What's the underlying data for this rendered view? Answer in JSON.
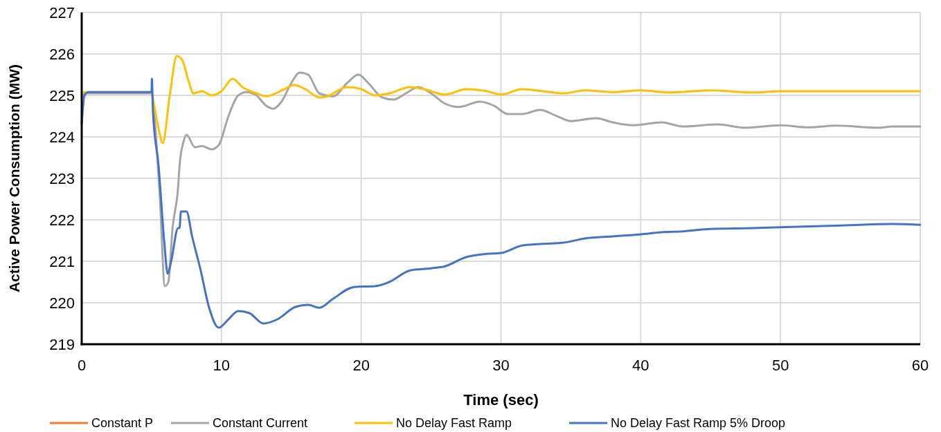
{
  "chart_data": {
    "type": "line",
    "xlabel": "Time (sec)",
    "ylabel": "Active Power Consumption (MW)",
    "xlim": [
      0,
      60
    ],
    "xticks": [
      0,
      10,
      20,
      30,
      40,
      50,
      60
    ],
    "ylim": [
      219,
      227
    ],
    "yticks": [
      219,
      220,
      221,
      222,
      223,
      224,
      225,
      226,
      227
    ],
    "grid": true,
    "legend": "bottom",
    "line_style": "solid",
    "marker": "none",
    "series": [
      {
        "name": "Constant P",
        "color": "#ed7d31"
      },
      {
        "name": "Constant Current",
        "color": "#a5a5a5",
        "x": [
          0,
          0.3,
          5,
          5.2,
          5.6,
          5.95,
          6.2,
          6.5,
          6.9,
          7.0,
          7.3,
          7.5,
          8.1,
          8.6,
          9.3,
          9.8,
          10.5,
          11.2,
          11.8,
          12.5,
          13.2,
          13.7,
          14.3,
          15,
          15.6,
          16.2,
          17,
          18,
          19,
          19.8,
          20.5,
          21.5,
          22.3,
          23.2,
          24.1,
          25,
          26,
          27,
          28.5,
          29.5,
          30.5,
          31.5,
          32.8,
          34,
          35,
          36.8,
          38,
          39.5,
          41.5,
          43,
          45.5,
          47.5,
          50,
          52,
          54,
          57,
          58,
          60
        ],
        "values": [
          224.95,
          225.05,
          225.05,
          224.5,
          222.5,
          220.4,
          220.5,
          221.8,
          222.8,
          223.3,
          223.9,
          224.05,
          223.75,
          223.78,
          223.7,
          223.8,
          224.5,
          225.0,
          225.08,
          225.0,
          224.75,
          224.68,
          224.85,
          225.3,
          225.55,
          225.5,
          225.05,
          224.98,
          225.3,
          225.5,
          225.3,
          224.95,
          224.9,
          225.05,
          225.2,
          225.05,
          224.8,
          224.72,
          224.85,
          224.75,
          224.55,
          224.55,
          224.65,
          224.5,
          224.38,
          224.45,
          224.35,
          224.28,
          224.35,
          224.25,
          224.3,
          224.22,
          224.28,
          224.23,
          224.27,
          224.22,
          224.25,
          224.25
        ]
      },
      {
        "name": "No Delay Fast Ramp",
        "color": "#ffc000",
        "x": [
          0,
          0.3,
          5,
          5.05,
          5.5,
          5.8,
          6.3,
          6.8,
          7.2,
          7.6,
          8,
          8.6,
          9.3,
          10,
          10.8,
          11.5,
          12.5,
          13.2,
          14.5,
          15.2,
          16,
          17,
          17.5,
          19,
          20,
          21,
          22,
          23.5,
          24.5,
          26,
          27.5,
          29,
          30,
          31.5,
          33,
          34.5,
          36,
          38,
          40,
          42,
          45,
          48,
          50,
          55,
          60
        ],
        "values": [
          225.05,
          225.08,
          225.08,
          225.0,
          224.2,
          223.85,
          225.0,
          225.95,
          225.85,
          225.4,
          225.05,
          225.1,
          225.0,
          225.1,
          225.4,
          225.2,
          225.05,
          224.98,
          225.15,
          225.25,
          225.15,
          224.95,
          224.97,
          225.2,
          225.15,
          225.0,
          225.05,
          225.2,
          225.15,
          225.02,
          225.15,
          225.1,
          225.02,
          225.15,
          225.1,
          225.05,
          225.12,
          225.08,
          225.12,
          225.07,
          225.12,
          225.07,
          225.1,
          225.1,
          225.1
        ]
      },
      {
        "name": "No Delay Fast Ramp 5% Droop",
        "color": "#4472c4",
        "x": [
          0,
          0.2,
          0.5,
          5,
          5.02,
          5.1,
          5.5,
          5.9,
          6.15,
          6.4,
          6.9,
          7.0,
          7.1,
          7.5,
          7.9,
          8.5,
          9.1,
          9.8,
          10.5,
          11.2,
          12,
          13,
          14,
          15.3,
          16.2,
          17,
          18,
          19.5,
          21,
          22,
          23.5,
          25,
          26,
          27.5,
          29,
          30,
          31.5,
          33,
          34.5,
          36,
          38,
          40,
          41.5,
          43,
          45,
          48,
          50,
          53,
          55,
          58,
          60
        ],
        "values": [
          224.3,
          225.0,
          225.08,
          225.08,
          225.4,
          224.6,
          223.3,
          221.5,
          220.7,
          221.0,
          221.8,
          221.8,
          222.2,
          222.2,
          221.6,
          220.8,
          219.9,
          219.4,
          219.6,
          219.8,
          219.75,
          219.5,
          219.6,
          219.9,
          219.95,
          219.88,
          220.1,
          220.38,
          220.4,
          220.5,
          220.78,
          220.83,
          220.88,
          221.1,
          221.18,
          221.2,
          221.38,
          221.42,
          221.45,
          221.55,
          221.6,
          221.65,
          221.7,
          221.72,
          221.78,
          221.8,
          221.82,
          221.85,
          221.87,
          221.9,
          221.88
        ]
      }
    ]
  }
}
